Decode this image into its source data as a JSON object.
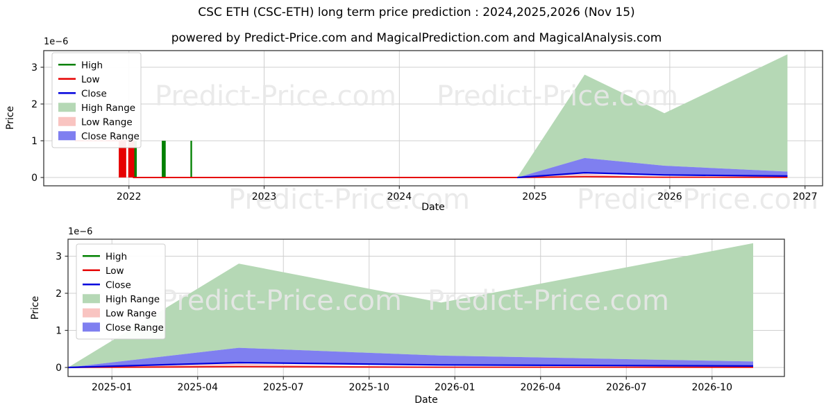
{
  "header": {
    "title": "CSC ETH (CSC-ETH) long term price prediction : 2024,2025,2026 (Nov 15)",
    "subtitle": "powered by Predict-Price.com and MagicalPrediction.com and MagicalAnalysis.com"
  },
  "watermark": {
    "text": "Predict-Price.com",
    "color": "#e8e8e8"
  },
  "colors": {
    "high_line": "#008000",
    "low_line": "#e60000",
    "close_line": "#0000dd",
    "high_range_fill": "#b5d8b5",
    "low_range_fill": "#f9c4c1",
    "close_range_fill": "#7f7ff0",
    "grid": "#cfcfcf",
    "spine": "#363636",
    "text": "#000000",
    "legend_border": "#cccccc"
  },
  "legend": {
    "items": [
      {
        "label": "High",
        "type": "line",
        "color_key": "high_line"
      },
      {
        "label": "Low",
        "type": "line",
        "color_key": "low_line"
      },
      {
        "label": "Close",
        "type": "line",
        "color_key": "close_line"
      },
      {
        "label": "High Range",
        "type": "range",
        "color_key": "high_range_fill"
      },
      {
        "label": "Low Range",
        "type": "range",
        "color_key": "low_range_fill"
      },
      {
        "label": "Close Range",
        "type": "range",
        "color_key": "close_range_fill"
      }
    ]
  },
  "prediction_series": {
    "x_unit": "decimal_year",
    "y_unit": "1e-6 ETH",
    "start_date": "2024-11-15",
    "end_date": "2026-11-15",
    "high_range_top": [
      [
        2024.872,
        0
      ],
      [
        2025.37,
        2.8
      ],
      [
        2025.96,
        1.75
      ],
      [
        2026.87,
        3.35
      ]
    ],
    "close_range_top": [
      [
        2024.872,
        0
      ],
      [
        2025.37,
        0.53
      ],
      [
        2025.96,
        0.32
      ],
      [
        2026.87,
        0.16
      ]
    ],
    "close": [
      [
        2024.872,
        0
      ],
      [
        2025.37,
        0.13
      ],
      [
        2025.96,
        0.07
      ],
      [
        2026.87,
        0.04
      ]
    ],
    "low_range_top": [
      [
        2024.872,
        0
      ],
      [
        2025.12,
        0.05
      ],
      [
        2025.37,
        0.1
      ],
      [
        2025.71,
        0.04
      ],
      [
        2025.96,
        0.02
      ],
      [
        2026.87,
        0.01
      ]
    ],
    "low": [
      [
        2024.872,
        0
      ],
      [
        2025.37,
        0.02
      ],
      [
        2025.96,
        0.008
      ],
      [
        2026.87,
        0.005
      ]
    ]
  },
  "chart_data": [
    {
      "type": "area",
      "name": "long-term-history-and-prediction",
      "xlabel": "Date",
      "ylabel": "Price",
      "y_offset_label": "1e−6",
      "xlim": [
        2021.37,
        2027.13
      ],
      "ylim": [
        0,
        3.35
      ],
      "y_ticks": [
        0,
        1,
        2,
        3
      ],
      "x_ticks": [
        {
          "v": 2022,
          "label": "2022"
        },
        {
          "v": 2023,
          "label": "2023"
        },
        {
          "v": 2024,
          "label": "2024"
        },
        {
          "v": 2025,
          "label": "2025"
        },
        {
          "v": 2026,
          "label": "2026"
        },
        {
          "v": 2027,
          "label": "2027"
        }
      ],
      "history": {
        "bar_value": 1,
        "low_bars": [
          [
            2021.925,
            2021.98
          ],
          [
            2021.995,
            2022.035
          ]
        ],
        "high_bars": [
          [
            2022.038,
            2022.058
          ],
          [
            2022.243,
            2022.272
          ],
          [
            2022.455,
            2022.467
          ]
        ],
        "low_line": [
          [
            2021.6,
            1
          ],
          [
            2022.035,
            1
          ],
          [
            2022.035,
            0
          ],
          [
            2024.872,
            0
          ]
        ]
      },
      "uses_prediction_series": true
    },
    {
      "type": "area",
      "name": "prediction-zoom",
      "xlabel": "Date",
      "ylabel": "Price",
      "y_offset_label": "1e−6",
      "xlim": [
        2024.872,
        2026.961
      ],
      "ylim": [
        0,
        3.35
      ],
      "y_ticks": [
        0,
        1,
        2,
        3
      ],
      "x_ticks": [
        {
          "v": 2025.0,
          "label": "2025-01"
        },
        {
          "v": 2025.25,
          "label": "2025-04"
        },
        {
          "v": 2025.5,
          "label": "2025-07"
        },
        {
          "v": 2025.75,
          "label": "2025-10"
        },
        {
          "v": 2026.0,
          "label": "2026-01"
        },
        {
          "v": 2026.25,
          "label": "2026-04"
        },
        {
          "v": 2026.5,
          "label": "2026-07"
        },
        {
          "v": 2026.75,
          "label": "2026-10"
        }
      ],
      "uses_prediction_series": true
    }
  ]
}
